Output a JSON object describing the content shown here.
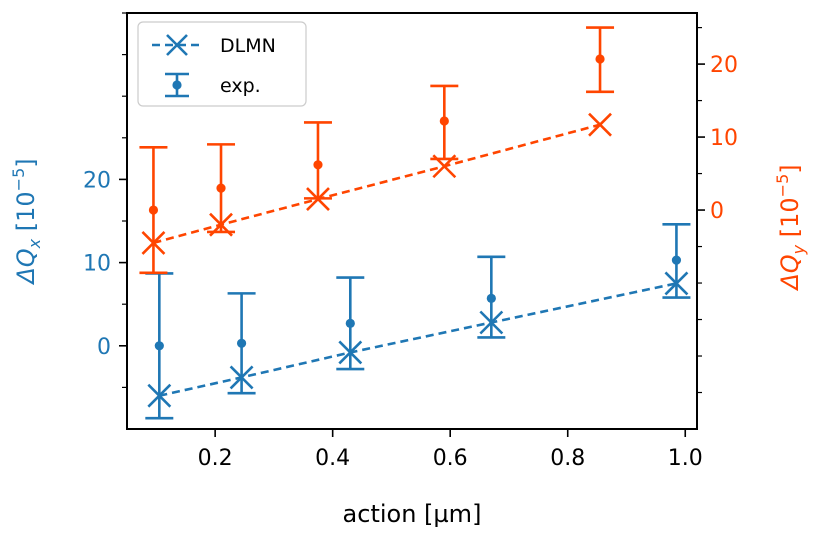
{
  "chart_data": {
    "type": "scatter",
    "xlabel": "action [µm]",
    "xlim": [
      0.05,
      1.02
    ],
    "x_ticks": [
      0.2,
      0.4,
      0.6,
      0.8,
      1.0
    ],
    "x_tick_labels": [
      "0.2",
      "0.4",
      "0.6",
      "0.8",
      "1.0"
    ],
    "left_axis": {
      "label": "ΔQ",
      "label_subscript": "x",
      "label_unit": "[10",
      "label_exponent": "−5",
      "label_unit_close": "]",
      "color": "#1f77b4",
      "ylim": [
        -10,
        40
      ],
      "ticks": [
        0,
        10,
        20
      ],
      "tick_labels": [
        "0",
        "10",
        "20"
      ]
    },
    "right_axis": {
      "label": "ΔQ",
      "label_subscript": "y",
      "label_unit": "[10",
      "label_exponent": "−5",
      "label_unit_close": "]",
      "color": "#ff4500",
      "ylim": [
        -30,
        27
      ],
      "ticks": [
        0,
        10,
        20
      ],
      "tick_labels": [
        "0",
        "10",
        "20"
      ]
    },
    "series": [
      {
        "name": "DLMN",
        "kind": "model",
        "axis": "left",
        "color": "#1f77b4",
        "x": [
          0.105,
          0.245,
          0.43,
          0.67,
          0.985
        ],
        "y": [
          -6,
          -3.8,
          -0.8,
          2.8,
          7.5
        ]
      },
      {
        "name": "exp.",
        "kind": "experiment",
        "axis": "left",
        "color": "#1f77b4",
        "x": [
          0.105,
          0.245,
          0.43,
          0.67,
          0.985
        ],
        "y": [
          0,
          0.3,
          2.7,
          5.7,
          10.3
        ],
        "yerr_low": [
          8.7,
          6,
          5.5,
          4.7,
          4.5
        ],
        "yerr_high": [
          8.7,
          6,
          5.5,
          5,
          4.3
        ]
      },
      {
        "name": "DLMN",
        "kind": "model",
        "axis": "right",
        "color": "#ff4500",
        "x": [
          0.095,
          0.21,
          0.375,
          0.59,
          0.855
        ],
        "y": [
          -4.5,
          -2,
          1.5,
          6,
          11.7
        ]
      },
      {
        "name": "exp.",
        "kind": "experiment",
        "axis": "right",
        "color": "#ff4500",
        "x": [
          0.095,
          0.21,
          0.375,
          0.59,
          0.855
        ],
        "y": [
          0,
          3,
          6.2,
          12.2,
          20.7
        ],
        "yerr_low": [
          8.6,
          6,
          4.6,
          5.2,
          4.5
        ],
        "yerr_high": [
          8.6,
          6,
          5.8,
          4.8,
          4.3
        ]
      }
    ],
    "legend": {
      "location": "top-left",
      "entries": [
        {
          "label": "DLMN",
          "color": "#1f77b4",
          "style": "dashed-x"
        },
        {
          "label": "exp.",
          "color": "#1f77b4",
          "style": "errorbar-dot"
        }
      ]
    }
  }
}
